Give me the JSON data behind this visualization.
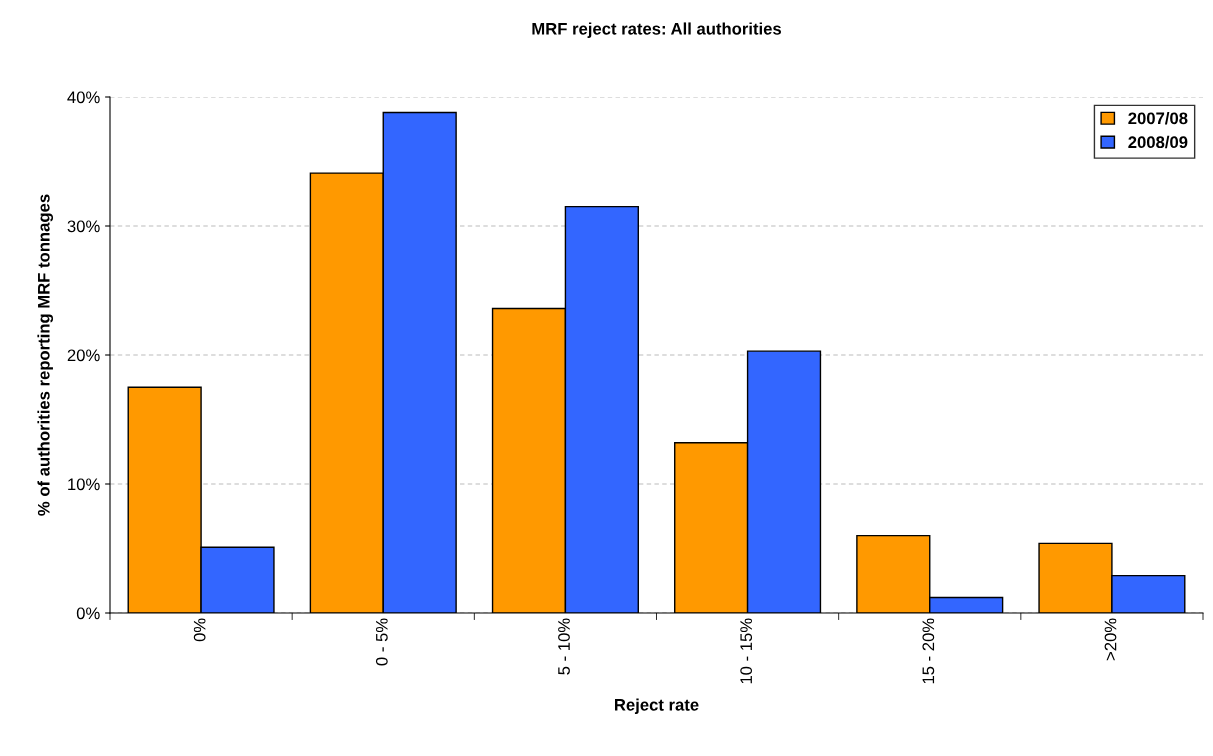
{
  "chart_data": {
    "type": "bar",
    "title": "MRF reject rates: All authorities",
    "xlabel": "Reject rate",
    "ylabel": "% of authorities reporting MRF tonnages",
    "categories": [
      "0%",
      "0 - 5%",
      "5 - 10%",
      "10 - 15%",
      "15 - 20%",
      ">20%"
    ],
    "series": [
      {
        "name": "2007/08",
        "color": "#ff9900",
        "values": [
          17.5,
          34.1,
          23.6,
          13.2,
          6.0,
          5.4
        ]
      },
      {
        "name": "2008/09",
        "color": "#3366ff",
        "values": [
          5.1,
          38.8,
          31.5,
          20.3,
          1.2,
          2.9
        ]
      }
    ],
    "ylim": [
      0,
      40
    ],
    "yticks": [
      {
        "value": 0,
        "label": "0%"
      },
      {
        "value": 10,
        "label": "10%"
      },
      {
        "value": 20,
        "label": "20%"
      },
      {
        "value": 30,
        "label": "30%"
      },
      {
        "value": 40,
        "label": "40%"
      }
    ],
    "grid": "y",
    "legend": "top right"
  }
}
